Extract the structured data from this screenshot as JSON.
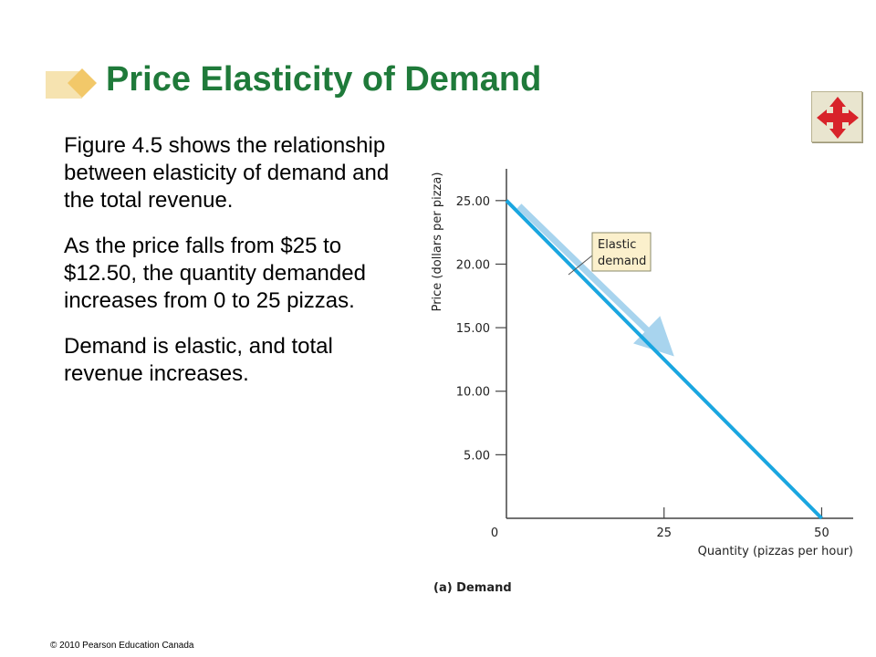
{
  "slide": {
    "title": "Price Elasticity of Demand",
    "paragraphs": [
      "Figure 4.5 shows the relationship between elasticity of demand and the total revenue.",
      "As the price falls from $25 to $12.50, the quantity demanded increases from 0 to 25 pizzas.",
      "Demand is elastic, and total revenue increases."
    ],
    "footer": "© 2010 Pearson Education Canada",
    "nav_icon": "four-way-arrows-icon"
  },
  "colors": {
    "title": "#1f7a3a",
    "demand_line": "#1aa6e0",
    "arrow": "#a8d4ee",
    "annotation_bg": "#fbf0cc",
    "nav_arrows": "#d8232a",
    "title_deco": "#f2c869"
  },
  "chart_data": {
    "type": "line",
    "caption": "(a) Demand",
    "xlabel": "Quantity (pizzas per hour)",
    "ylabel": "Price (dollars per pizza)",
    "xlim": [
      0,
      55
    ],
    "ylim": [
      0,
      27.5
    ],
    "x_ticks": [
      0,
      25,
      50
    ],
    "x_tick_labels": [
      "0",
      "25",
      "50"
    ],
    "y_ticks": [
      5,
      10,
      15,
      20,
      25
    ],
    "y_tick_labels": [
      "5.00",
      "10.00",
      "15.00",
      "20.00",
      "25.00"
    ],
    "series": [
      {
        "points": [
          [
            0,
            25
          ],
          [
            50,
            0
          ]
        ]
      }
    ],
    "annotation": {
      "lines": [
        "Elastic",
        "demand"
      ]
    },
    "arrow": {
      "from": [
        0,
        25
      ],
      "to": [
        25,
        12.5
      ]
    }
  }
}
